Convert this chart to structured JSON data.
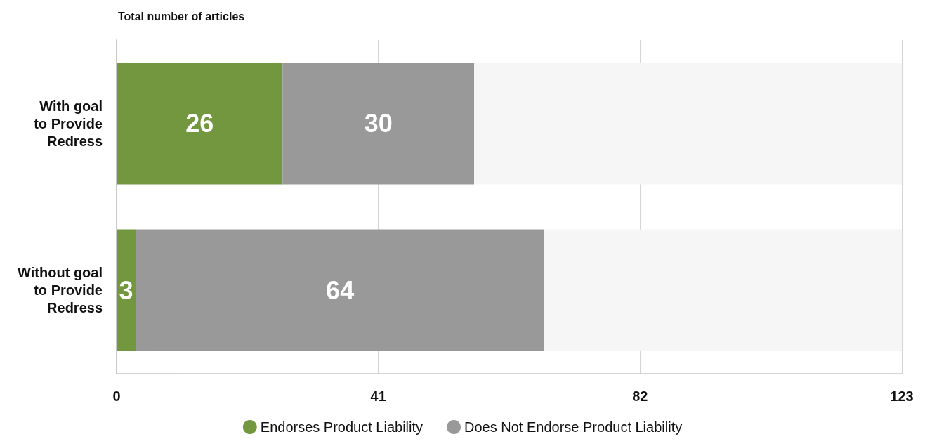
{
  "chart_data": {
    "type": "bar",
    "orientation": "horizontal",
    "stacked": true,
    "title": "Total number of articles",
    "categories": [
      "With goal\nto Provide\nRedress",
      "Without goal\nto Provide\nRedress"
    ],
    "series": [
      {
        "name": "Endorses Product Liability",
        "color": "#72973f",
        "values": [
          26,
          3
        ],
        "value_labels": [
          "26",
          "3"
        ]
      },
      {
        "name": "Does Not Endorse Product Liability",
        "color": "#999999",
        "values": [
          30,
          64
        ],
        "value_labels": [
          "30",
          "64"
        ]
      },
      {
        "color": "#f6f6f6",
        "values": [
          67,
          56
        ]
      }
    ],
    "xlim": [
      0,
      123
    ],
    "xticks": [
      0,
      41,
      82,
      123
    ],
    "grid": "x",
    "legend": "bottom"
  }
}
